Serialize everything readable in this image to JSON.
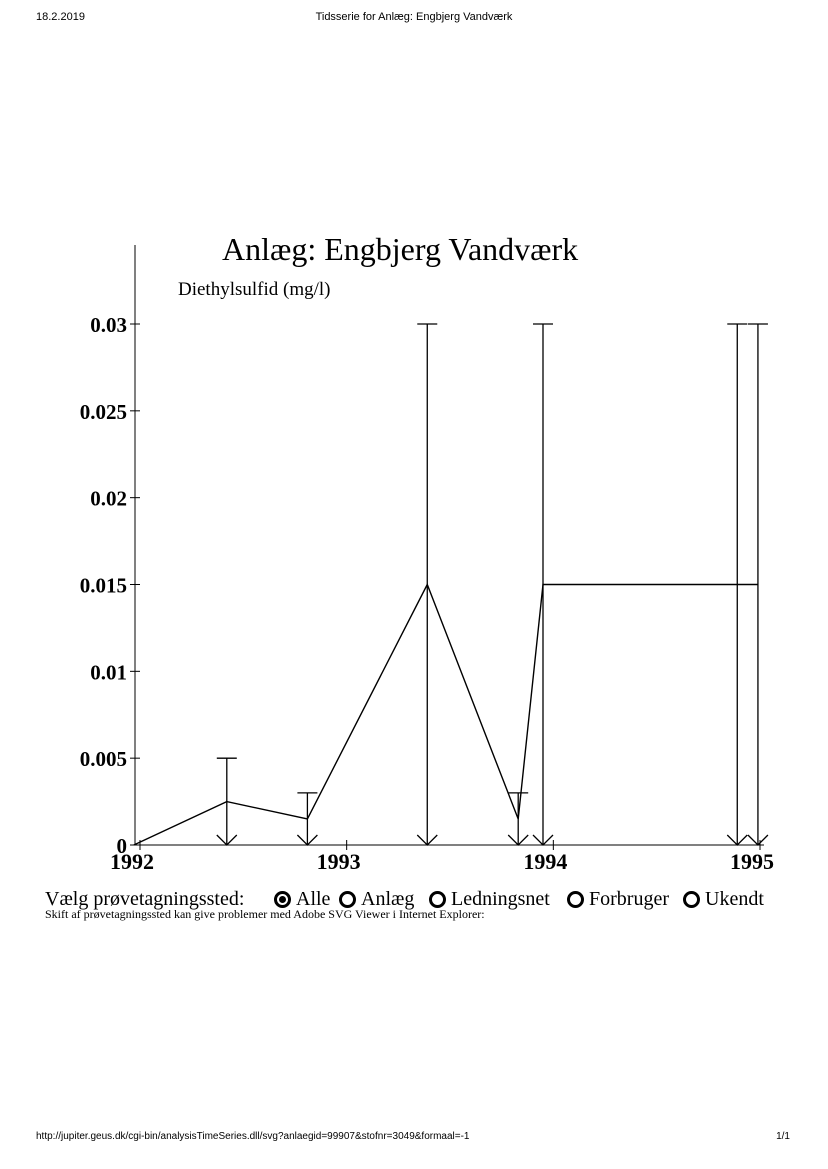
{
  "header": {
    "date": "18.2.2019",
    "title": "Tidsserie for Anlæg: Engbjerg Vandværk"
  },
  "footer": {
    "url": "http://jupiter.geus.dk/cgi-bin/analysisTimeSeries.dll/svg?anlaegid=99907&stofnr=3049&formaal=-1",
    "page": "1/1"
  },
  "chart_data": {
    "type": "line",
    "title": "Anlæg: Engbjerg Vandværk",
    "ylabel": "Diethylsulfid (mg/l)",
    "xlabel": "",
    "x_ticks": [
      "1992",
      "1993",
      "1994",
      "1995"
    ],
    "y_ticks": [
      "0",
      "0.005",
      "0.01",
      "0.015",
      "0.02",
      "0.025",
      "0.03"
    ],
    "xlim": [
      1992,
      1995
    ],
    "ylim": [
      0,
      0.03
    ],
    "grid": false,
    "series": [
      {
        "values": [
          {
            "x": 1991.97,
            "y": 0,
            "err_hi": 0
          },
          {
            "x": 1992.42,
            "y": 0.0025,
            "err_hi": 0.005
          },
          {
            "x": 1992.81,
            "y": 0.0015,
            "err_hi": 0.003
          },
          {
            "x": 1993.39,
            "y": 0.015,
            "err_hi": 0.03
          },
          {
            "x": 1993.83,
            "y": 0.0015,
            "err_hi": 0.003
          },
          {
            "x": 1993.95,
            "y": 0.015,
            "err_hi": 0.03
          },
          {
            "x": 1994.89,
            "y": 0.015,
            "err_hi": 0.03
          },
          {
            "x": 1994.99,
            "y": 0.015,
            "err_hi": 0.03
          }
        ]
      }
    ]
  },
  "station": {
    "label": "Vælg prøvetagningssted:",
    "options": [
      {
        "label": "Alle",
        "selected": true
      },
      {
        "label": "Anlæg",
        "selected": false
      },
      {
        "label": "Ledningsnet",
        "selected": false
      },
      {
        "label": "Forbruger",
        "selected": false
      },
      {
        "label": "Ukendt",
        "selected": false
      }
    ],
    "note": "Skift af prøvetagningssted kan give problemer med Adobe SVG Viewer i Internet Explorer:"
  }
}
